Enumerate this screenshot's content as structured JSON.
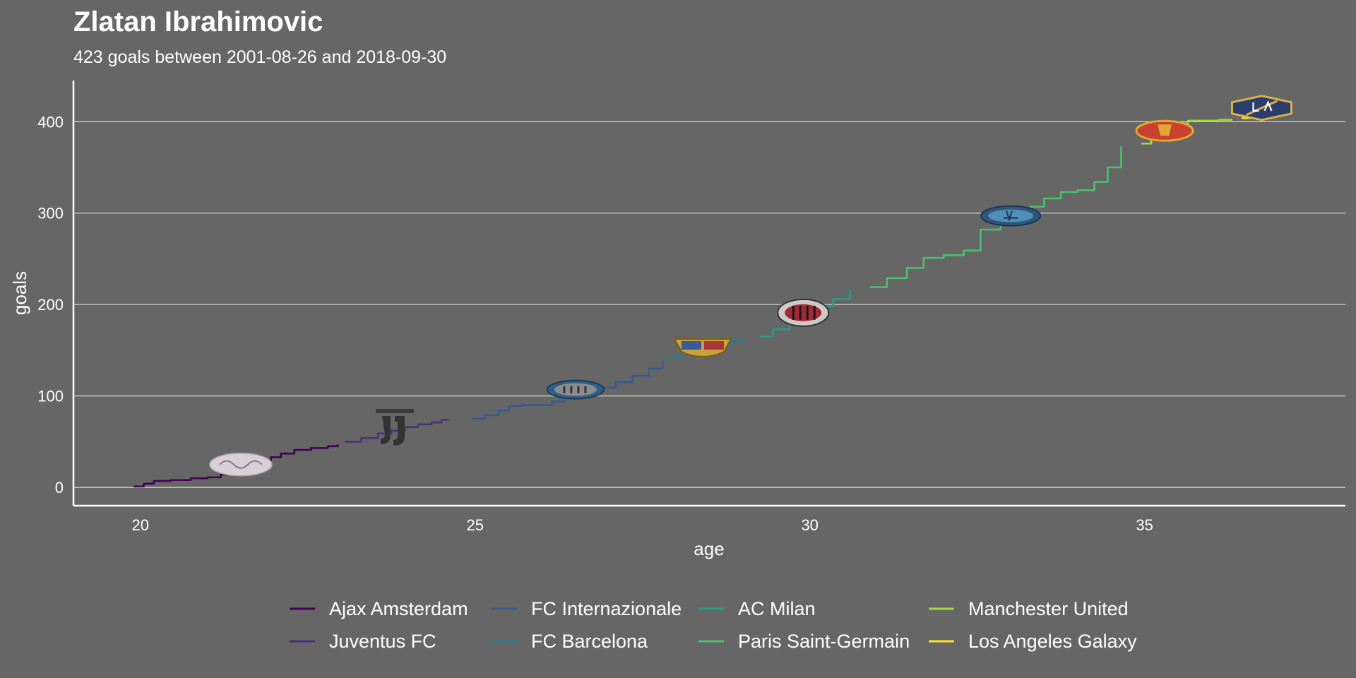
{
  "chart_data": {
    "type": "line",
    "title": "Zlatan Ibrahimovic",
    "subtitle": "423 goals between 2001-08-26 and 2018-09-30",
    "xlabel": "age",
    "ylabel": "goals",
    "xlim": [
      19.0,
      38.0
    ],
    "ylim": [
      -20,
      445
    ],
    "xticks": [
      20,
      25,
      30,
      35
    ],
    "yticks": [
      0,
      100,
      200,
      300,
      400
    ],
    "grid": "horizontal",
    "legend_position": "bottom",
    "background": "#666666",
    "series": [
      {
        "name": "Ajax Amsterdam",
        "color": "#440154",
        "x": [
          19.9,
          20.05,
          20.2,
          20.45,
          20.75,
          21.0,
          21.2,
          21.45,
          21.6,
          21.75,
          21.95,
          22.1,
          22.3,
          22.55,
          22.8,
          22.95
        ],
        "y": [
          1,
          4,
          7,
          8,
          10,
          11,
          14,
          19,
          23,
          28,
          33,
          37,
          41,
          43,
          45,
          47
        ]
      },
      {
        "name": "Juventus FC",
        "color": "#46337E",
        "x": [
          23.05,
          23.3,
          23.55,
          23.75,
          23.95,
          24.15,
          24.35,
          24.5,
          24.6
        ],
        "y": [
          50,
          54,
          59,
          62,
          66,
          69,
          71,
          74,
          75
        ]
      },
      {
        "name": "FC Internazionale",
        "color": "#365C8D",
        "x": [
          24.95,
          25.15,
          25.35,
          25.5,
          25.7,
          25.95,
          26.15,
          26.35,
          26.6,
          26.9,
          27.1,
          27.35,
          27.6,
          27.8
        ],
        "y": [
          75,
          79,
          84,
          89,
          90,
          90,
          94,
          100,
          105,
          109,
          115,
          122,
          130,
          139
        ]
      },
      {
        "name": "FC Barcelona",
        "color": "#277F8E",
        "x": [
          27.85,
          28.1,
          28.35,
          28.6,
          28.85,
          29.0
        ],
        "y": [
          142,
          148,
          152,
          157,
          161,
          163
        ]
      },
      {
        "name": "AC Milan",
        "color": "#1FA187",
        "x": [
          29.25,
          29.45,
          29.7,
          29.95,
          30.15,
          30.35,
          30.6
        ],
        "y": [
          165,
          173,
          183,
          190,
          198,
          206,
          216
        ]
      },
      {
        "name": "Paris Saint-Germain",
        "color": "#4AC16D",
        "x": [
          30.9,
          31.15,
          31.45,
          31.7,
          32.0,
          32.3,
          32.55,
          32.85,
          33.1,
          33.3,
          33.5,
          33.75,
          34.0,
          34.25,
          34.45,
          34.65
        ],
        "y": [
          219,
          229,
          240,
          251,
          254,
          259,
          282,
          297,
          301,
          307,
          316,
          323,
          325,
          334,
          350,
          373
        ]
      },
      {
        "name": "Manchester United",
        "color": "#A0DA39",
        "x": [
          34.95,
          35.1,
          35.25,
          35.45,
          35.65,
          35.9,
          36.1,
          36.3
        ],
        "y": [
          376,
          381,
          386,
          398,
          401,
          401,
          402,
          403
        ]
      },
      {
        "name": "Los Angeles Galaxy",
        "color": "#FDE725",
        "x": [
          36.45,
          36.6,
          36.8,
          37.0,
          37.1
        ],
        "y": [
          404,
          407,
          410,
          414,
          417
        ]
      }
    ],
    "club_badges": [
      {
        "club": "Ajax Amsterdam",
        "icon": "ajax-badge",
        "x": 21.5,
        "y": 25
      },
      {
        "club": "Juventus FC",
        "icon": "juventus-badge",
        "x": 23.8,
        "y": 65
      },
      {
        "club": "FC Internazionale",
        "icon": "inter-badge",
        "x": 26.5,
        "y": 107
      },
      {
        "club": "FC Barcelona",
        "icon": "barcelona-badge",
        "x": 28.4,
        "y": 153
      },
      {
        "club": "AC Milan",
        "icon": "milan-badge",
        "x": 29.9,
        "y": 191
      },
      {
        "club": "Paris Saint-Germain",
        "icon": "psg-badge",
        "x": 33.0,
        "y": 297
      },
      {
        "club": "Manchester United",
        "icon": "man-utd-badge",
        "x": 35.3,
        "y": 390
      },
      {
        "club": "Los Angeles Galaxy",
        "icon": "la-galaxy-badge",
        "x": 36.75,
        "y": 415
      }
    ]
  }
}
